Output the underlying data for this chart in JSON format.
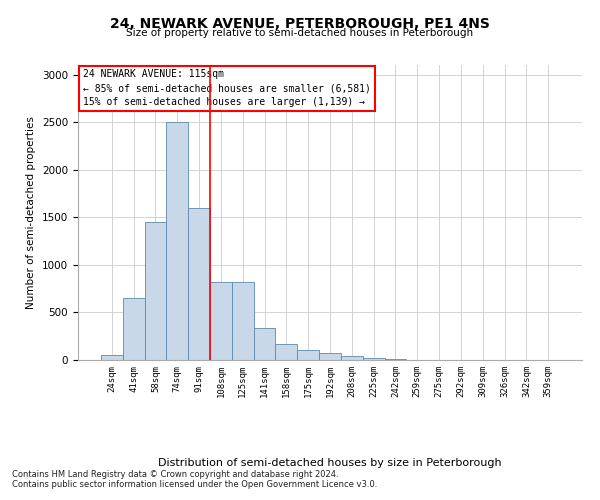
{
  "title": "24, NEWARK AVENUE, PETERBOROUGH, PE1 4NS",
  "subtitle": "Size of property relative to semi-detached houses in Peterborough",
  "xlabel": "Distribution of semi-detached houses by size in Peterborough",
  "ylabel": "Number of semi-detached properties",
  "footnote1": "Contains HM Land Registry data © Crown copyright and database right 2024.",
  "footnote2": "Contains public sector information licensed under the Open Government Licence v3.0.",
  "annotation_line1": "24 NEWARK AVENUE: 115sqm",
  "annotation_line2": "← 85% of semi-detached houses are smaller (6,581)",
  "annotation_line3": "15% of semi-detached houses are larger (1,139) →",
  "bar_color": "#c8d8e8",
  "bar_edge_color": "#5a8ab0",
  "vline_color": "red",
  "categories": [
    "24sqm",
    "41sqm",
    "58sqm",
    "74sqm",
    "91sqm",
    "108sqm",
    "125sqm",
    "141sqm",
    "158sqm",
    "175sqm",
    "192sqm",
    "208sqm",
    "225sqm",
    "242sqm",
    "259sqm",
    "275sqm",
    "292sqm",
    "309sqm",
    "326sqm",
    "342sqm",
    "359sqm"
  ],
  "values": [
    50,
    650,
    1450,
    2500,
    1600,
    820,
    820,
    340,
    170,
    110,
    70,
    45,
    20,
    10,
    5,
    5,
    3,
    2,
    2,
    2,
    2
  ],
  "ylim": [
    0,
    3100
  ],
  "yticks": [
    0,
    500,
    1000,
    1500,
    2000,
    2500,
    3000
  ],
  "vline_position": 4.5,
  "grid_color": "#cccccc",
  "background_color": "#ffffff"
}
